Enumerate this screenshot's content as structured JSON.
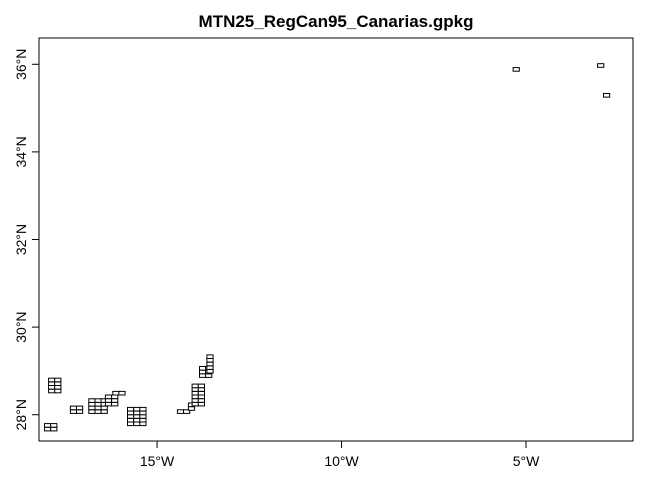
{
  "chart_data": {
    "type": "map",
    "title": "MTN25_RegCan95_Canarias.gpkg",
    "xlim": [
      -18.2,
      -2.1
    ],
    "ylim": [
      27.4,
      36.6
    ],
    "x_ticks": [
      {
        "value": -15,
        "label": "15°W"
      },
      {
        "value": -10,
        "label": "10°W"
      },
      {
        "value": -5,
        "label": "5°W"
      }
    ],
    "y_ticks": [
      {
        "value": 28,
        "label": "28°N"
      },
      {
        "value": 30,
        "label": "30°N"
      },
      {
        "value": 32,
        "label": "32°N"
      },
      {
        "value": 34,
        "label": "34°N"
      },
      {
        "value": 36,
        "label": "36°N"
      }
    ],
    "sheet_width_deg": 0.1667,
    "sheet_height_deg": 0.0833,
    "island_grids": [
      {
        "lon0": -18.05,
        "lat0": 27.63,
        "cols": 2,
        "rows": 2
      },
      {
        "lon0": -17.94,
        "lat0": 28.5,
        "cols": 2,
        "rows": 4
      },
      {
        "lon0": -17.35,
        "lat0": 28.03,
        "cols": 2,
        "rows": 2
      },
      {
        "lon0": -16.85,
        "lat0": 28.03,
        "cols": 3,
        "rows": 4
      },
      {
        "lon0": -16.4,
        "lat0": 28.2,
        "cols": 2,
        "rows": 3
      },
      {
        "lon0": -16.2,
        "lat0": 28.45,
        "cols": 2,
        "rows": 1
      },
      {
        "lon0": -15.8,
        "lat0": 27.75,
        "cols": 3,
        "rows": 5
      },
      {
        "lon0": -14.45,
        "lat0": 28.03,
        "cols": 2,
        "rows": 1
      },
      {
        "lon0": -14.15,
        "lat0": 28.1,
        "cols": 1,
        "rows": 2
      },
      {
        "lon0": -14.05,
        "lat0": 28.2,
        "cols": 2,
        "rows": 6
      },
      {
        "lon0": -13.85,
        "lat0": 28.85,
        "cols": 2,
        "rows": 3
      },
      {
        "lon0": -13.65,
        "lat0": 28.95,
        "cols": 1,
        "rows": 5
      }
    ],
    "single_sheets": [
      {
        "lon": -5.35,
        "lat": 35.84
      },
      {
        "lon": -3.06,
        "lat": 35.93
      },
      {
        "lon": -2.9,
        "lat": 35.25
      }
    ]
  }
}
